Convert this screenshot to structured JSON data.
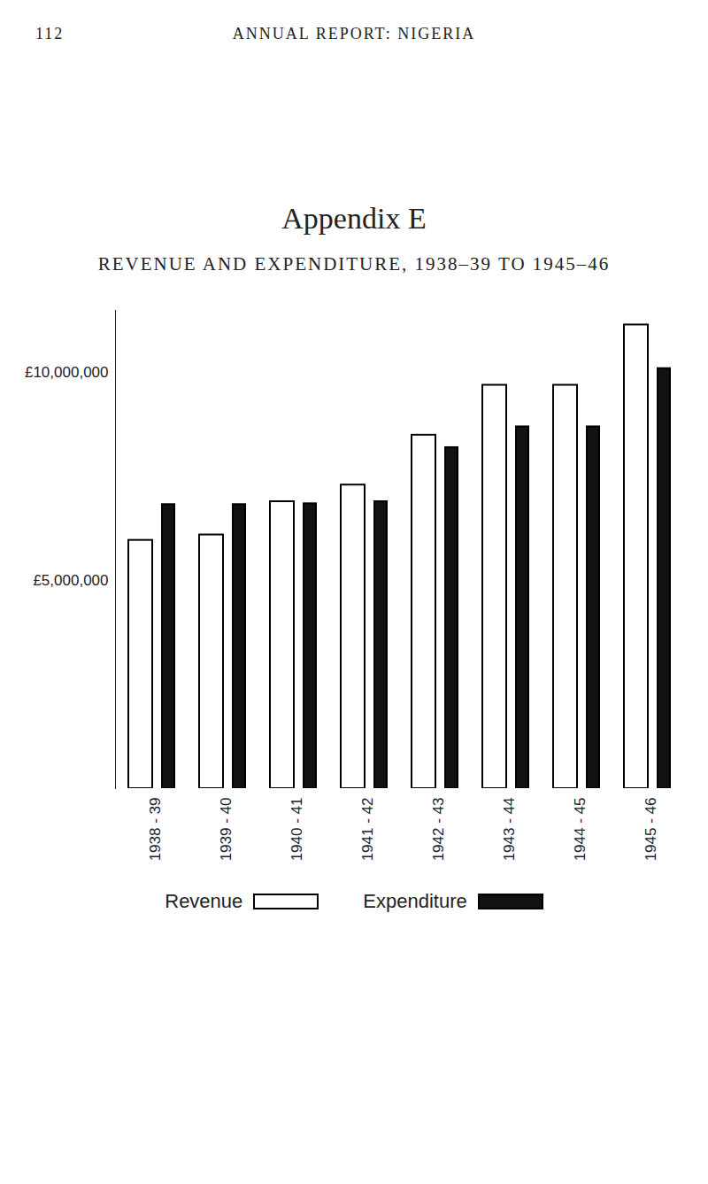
{
  "page": {
    "number": "112",
    "header": "ANNUAL REPORT: NIGERIA",
    "heading": "Appendix E"
  },
  "chart_data": {
    "type": "bar",
    "title": "REVENUE AND EXPENDITURE, 1938–39 TO 1945–46",
    "categories": [
      "1938 - 39",
      "1939 - 40",
      "1940 - 41",
      "1941 - 42",
      "1942 - 43",
      "1943 - 44",
      "1944 - 45",
      "1945 - 46"
    ],
    "series": [
      {
        "name": "Revenue",
        "color": "#ffffff",
        "values": [
          5970000,
          6100000,
          6900000,
          7300000,
          8500000,
          9700000,
          9700000,
          11150000
        ]
      },
      {
        "name": "Expenditure",
        "color": "#111111",
        "values": [
          6830000,
          6830000,
          6850000,
          6900000,
          8200000,
          8700000,
          8700000,
          10100000
        ]
      }
    ],
    "ylim": [
      0,
      11500000
    ],
    "yticks": [
      {
        "value": 5000000,
        "label": "£5,000,000"
      },
      {
        "value": 10000000,
        "label": "£10,000,000"
      }
    ],
    "grid": false,
    "legend": "bottom"
  }
}
